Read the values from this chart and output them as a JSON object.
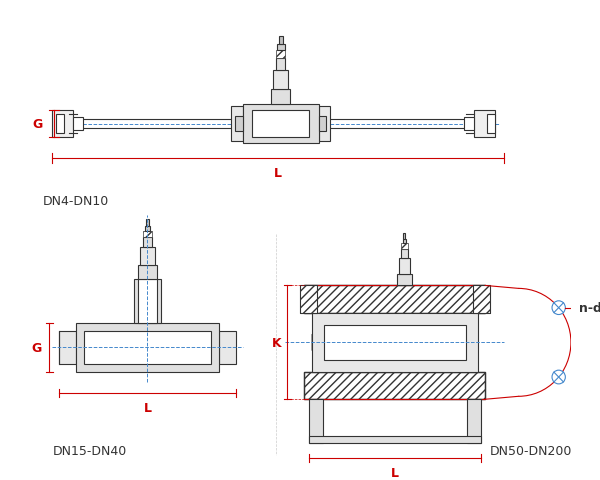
{
  "bg_color": "#ffffff",
  "line_color": "#333333",
  "dim_color": "#cc0000",
  "blue_color": "#4488cc",
  "label_color": "#222222",
  "hatch_color": "#555555",
  "fig_width": 6.0,
  "fig_height": 4.81,
  "labels": {
    "top_name": "DN4-DN10",
    "mid_name": "DN15-DN40",
    "bot_name": "DN50-DN200",
    "G": "G",
    "L": "L",
    "K": "K",
    "nd": "n-d"
  }
}
